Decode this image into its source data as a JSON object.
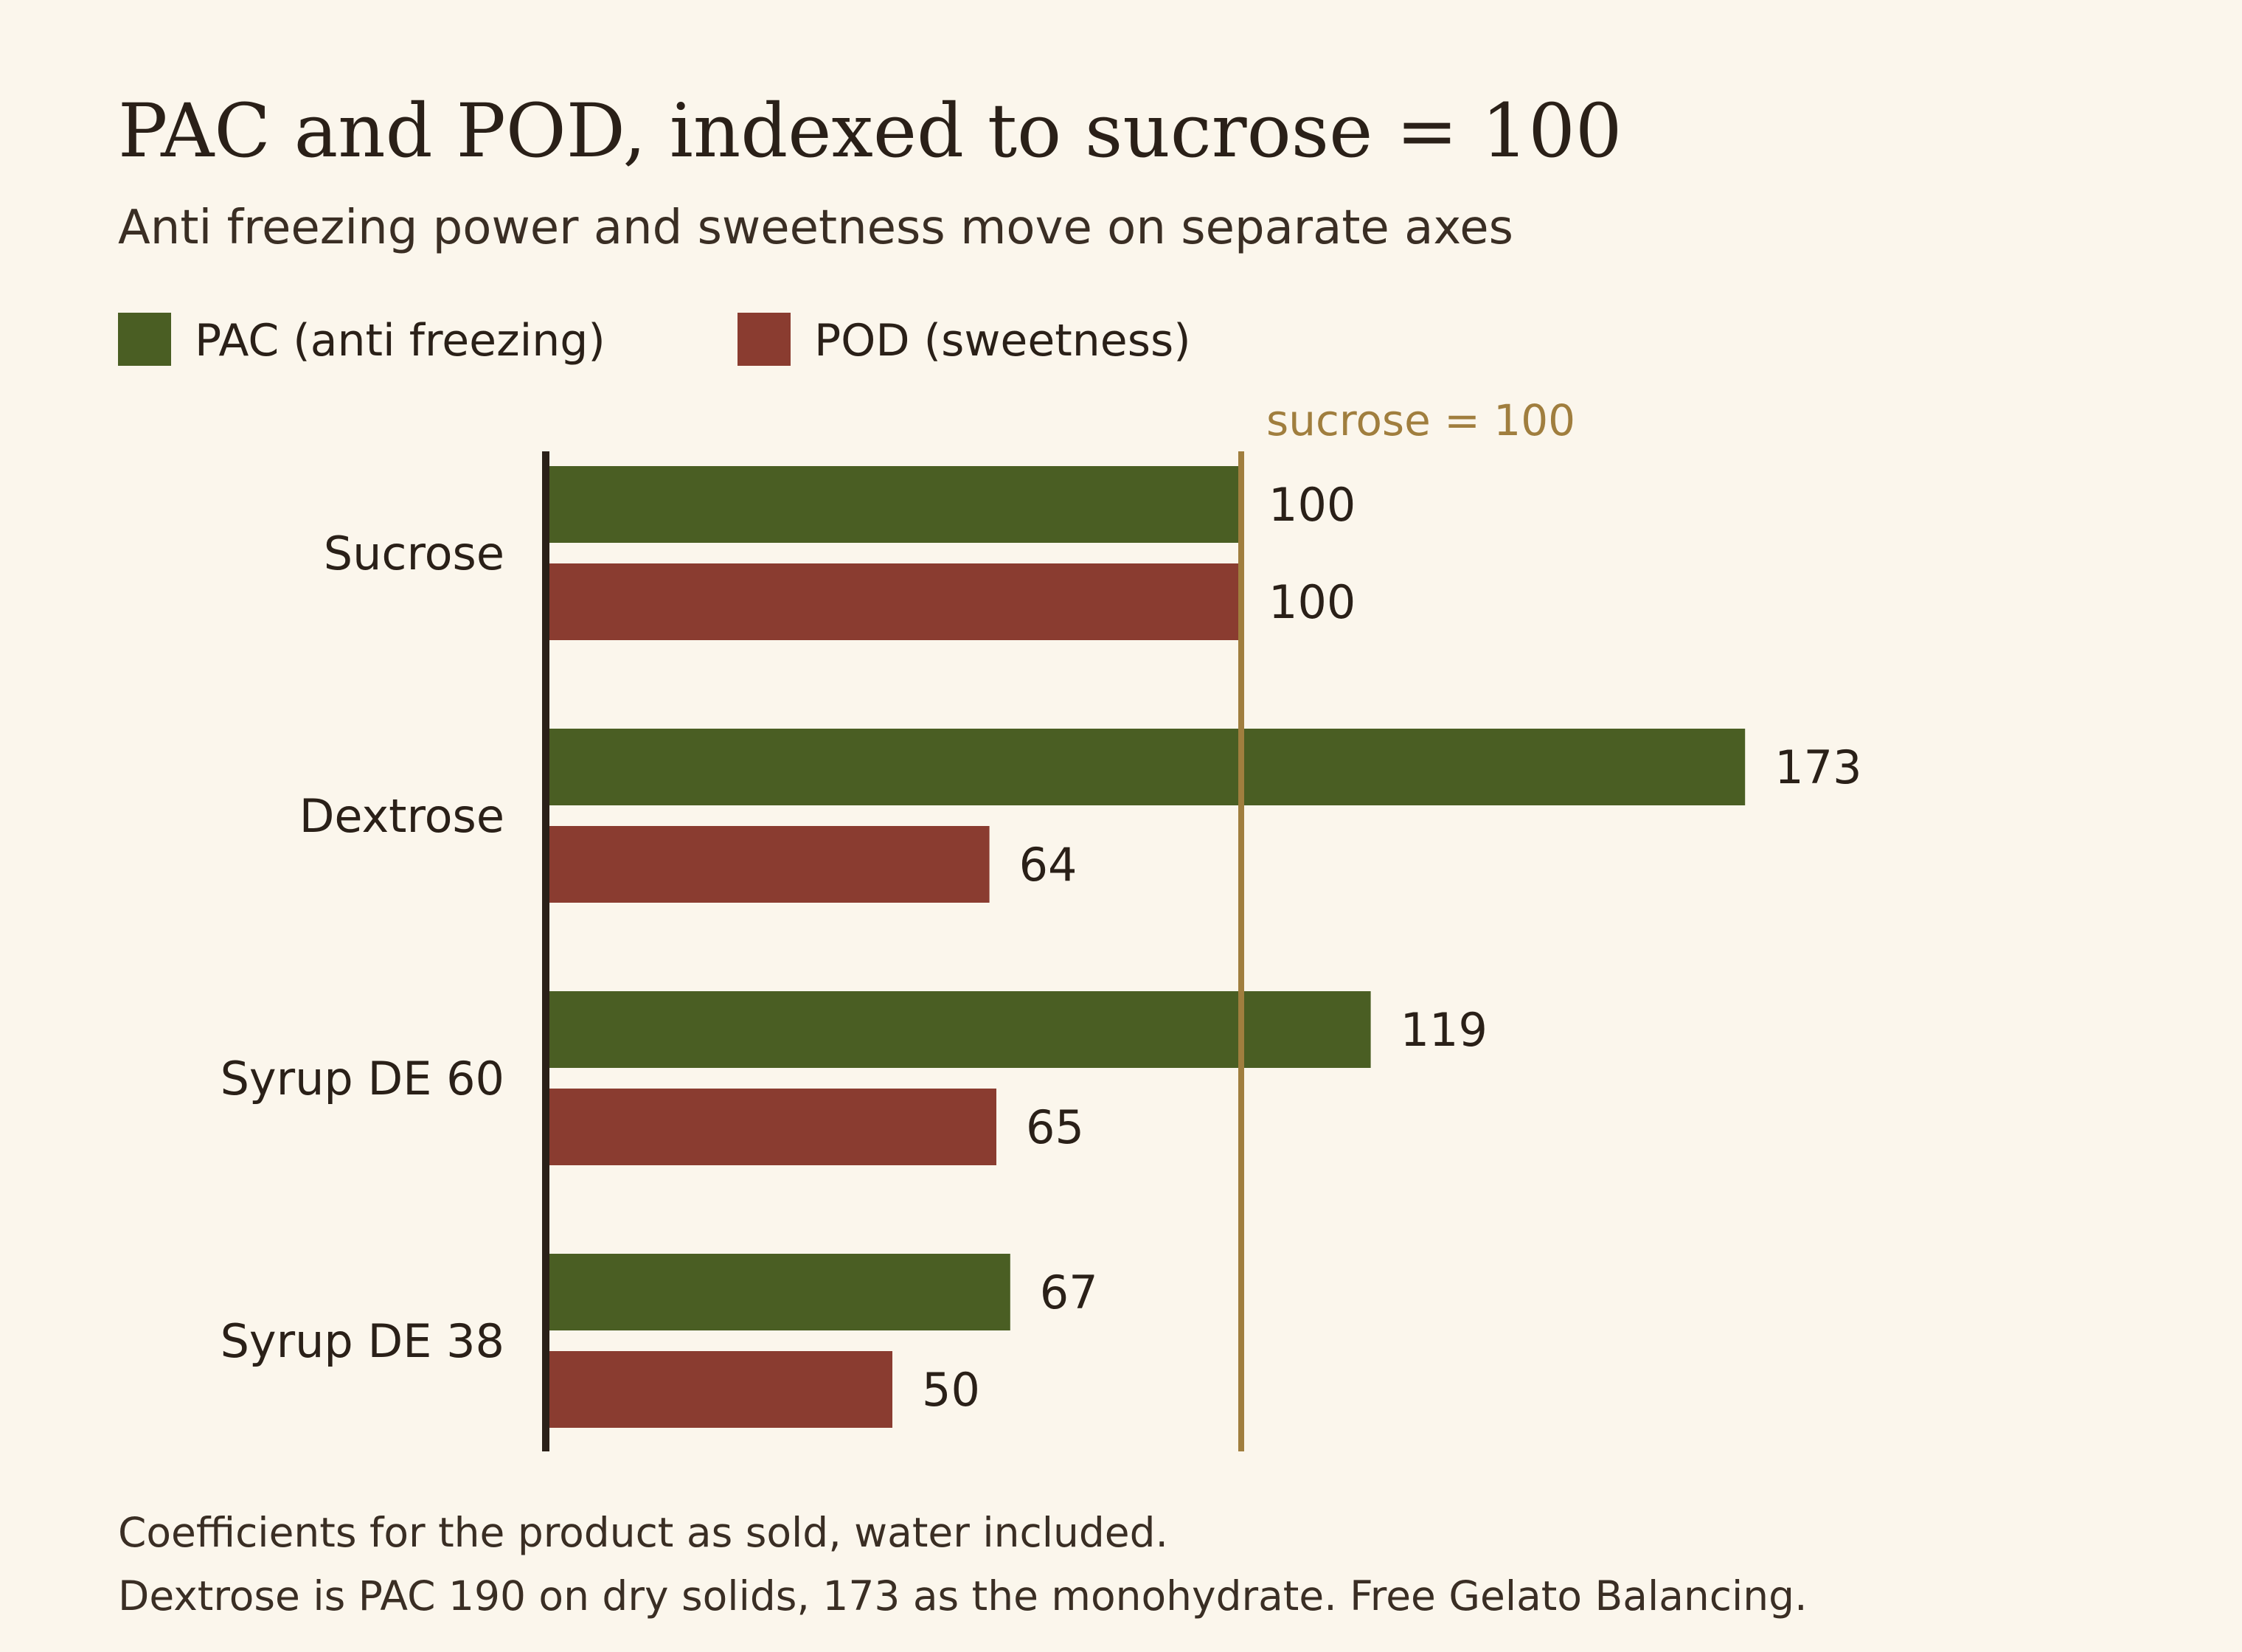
{
  "title": "PAC and POD, indexed to sucrose = 100",
  "subtitle": "Anti freezing power and sweetness move on separate axes",
  "reference_label": "sucrose = 100",
  "footnotes": [
    "Coefficients for the product as sold, water included.",
    "Dextrose is PAC 190 on dry solids, 173 as the monohydrate. Free Gelato Balancing."
  ],
  "colors": {
    "background": "#fbf6ec",
    "pac": "#4a5e23",
    "pod": "#8a3c30",
    "reference": "#a07e3e",
    "text": "#2a2018",
    "axis": "#2a2018"
  },
  "chart_data": {
    "type": "bar",
    "orientation": "horizontal",
    "categories": [
      "Sucrose",
      "Dextrose",
      "Syrup DE 60",
      "Syrup DE 38"
    ],
    "series": [
      {
        "name": "PAC (anti freezing)",
        "values": [
          100,
          173,
          119,
          67
        ]
      },
      {
        "name": "POD (sweetness)",
        "values": [
          100,
          64,
          65,
          50
        ]
      }
    ],
    "reference_value": 100,
    "xlim": [
      0,
      185
    ],
    "legend_position": "top-left",
    "grid": false
  }
}
